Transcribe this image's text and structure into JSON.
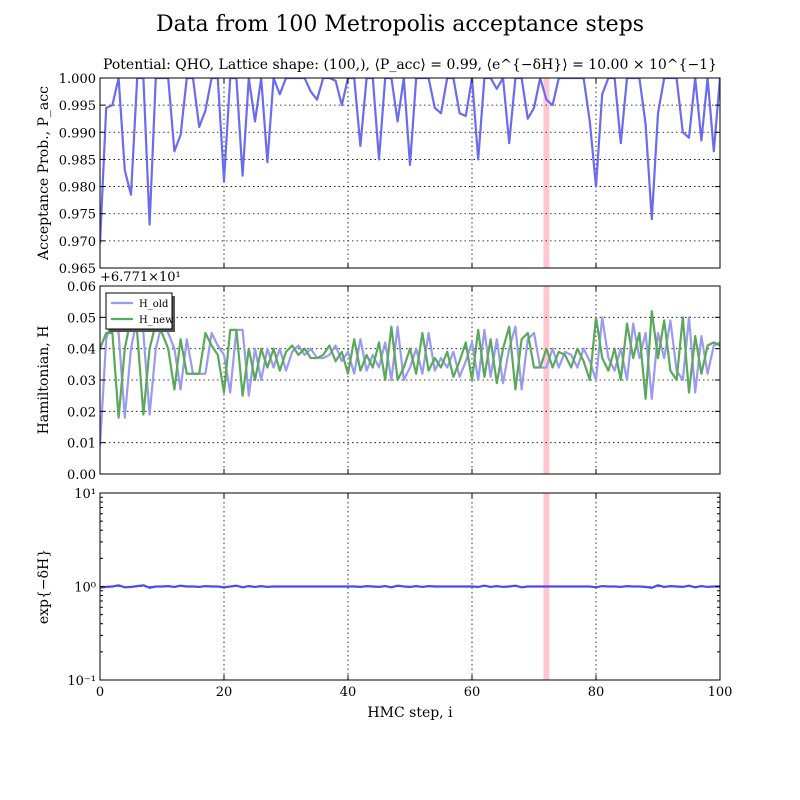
{
  "figure": {
    "title": "Data from 100 Metropolis acceptance steps",
    "subtitle": "Potential: QHO, Lattice shape: (100,), ⟨P_acc⟩ = 0.99, ⟨e^{−δH}⟩ = 10.00 × 10^{−1}",
    "xlabel": "HMC step, i"
  },
  "chart_data": [
    {
      "type": "line",
      "panel": "acceptance",
      "ylabel": "Acceptance Prob., P_acc",
      "xlim": [
        0,
        100
      ],
      "ylim": [
        0.965,
        1.0
      ],
      "xticks": [
        0,
        20,
        40,
        60,
        80,
        100
      ],
      "yticks": [
        "0.965",
        "0.970",
        "0.975",
        "0.980",
        "0.985",
        "0.990",
        "0.995",
        "1.000"
      ],
      "grid": true,
      "highlight_x": 72,
      "highlight_color": "#ffb6c1",
      "series": [
        {
          "color": "#6b6bf0",
          "x": [
            0,
            1,
            2,
            3,
            4,
            5,
            6,
            7,
            8,
            9,
            10,
            11,
            12,
            13,
            14,
            15,
            16,
            17,
            18,
            19,
            20,
            21,
            22,
            23,
            24,
            25,
            26,
            27,
            28,
            29,
            30,
            31,
            32,
            33,
            34,
            35,
            36,
            37,
            38,
            39,
            40,
            41,
            42,
            43,
            44,
            45,
            46,
            47,
            48,
            49,
            50,
            51,
            52,
            53,
            54,
            55,
            56,
            57,
            58,
            59,
            60,
            61,
            62,
            63,
            64,
            65,
            66,
            67,
            68,
            69,
            70,
            71,
            72,
            73,
            74,
            75,
            76,
            77,
            78,
            79,
            80,
            81,
            82,
            83,
            84,
            85,
            86,
            87,
            88,
            89,
            90,
            91,
            92,
            93,
            94,
            95,
            96,
            97,
            98,
            99,
            100
          ],
          "values": [
            0.9695,
            0.9945,
            0.995,
            1.0,
            0.983,
            0.9785,
            1.0,
            1.0,
            0.973,
            1.0,
            1.0,
            1.0,
            0.9865,
            0.9895,
            1.0,
            1.0,
            0.991,
            0.994,
            1.0,
            1.0,
            0.981,
            1.0,
            1.0,
            0.982,
            1.0,
            0.992,
            1.0,
            0.9845,
            1.0,
            0.997,
            1.0,
            1.0,
            1.0,
            1.0,
            0.9975,
            0.996,
            1.0,
            1.0,
            0.9995,
            0.995,
            1.0,
            1.0,
            0.9875,
            1.0,
            1.0,
            0.985,
            1.0,
            1.0,
            0.992,
            1.0,
            0.984,
            1.0,
            1.0,
            1.0,
            0.9945,
            0.9935,
            1.0,
            1.0,
            0.9935,
            0.993,
            1.0,
            0.985,
            1.0,
            1.0,
            0.998,
            1.0,
            0.988,
            1.0,
            1.0,
            0.9925,
            0.9945,
            1.0,
            0.996,
            0.995,
            1.0,
            1.0,
            1.0,
            1.0,
            1.0,
            0.992,
            0.98,
            0.997,
            1.0,
            1.0,
            0.988,
            1.0,
            1.0,
            1.0,
            0.9915,
            0.974,
            0.9935,
            1.0,
            1.0,
            1.0,
            0.99,
            0.989,
            1.0,
            0.9885,
            1.0,
            0.9865,
            1.0
          ]
        }
      ]
    },
    {
      "type": "line",
      "panel": "hamiltonian",
      "ylabel": "Hamiltonian, H",
      "offset_label": "+6.771×10¹",
      "xlim": [
        0,
        100
      ],
      "ylim": [
        0.0,
        0.06
      ],
      "xticks": [
        0,
        20,
        40,
        60,
        80,
        100
      ],
      "yticks": [
        "0.00",
        "0.01",
        "0.02",
        "0.03",
        "0.04",
        "0.05",
        "0.06"
      ],
      "grid": true,
      "legend": "top-left",
      "highlight_x": 72,
      "highlight_color": "#ffb6c1",
      "series": [
        {
          "name": "H_old",
          "color": "#9a9af0",
          "x": [
            0,
            1,
            2,
            3,
            4,
            5,
            6,
            7,
            8,
            9,
            10,
            11,
            12,
            13,
            14,
            15,
            16,
            17,
            18,
            19,
            20,
            21,
            22,
            23,
            24,
            25,
            26,
            27,
            28,
            29,
            30,
            31,
            32,
            33,
            34,
            35,
            36,
            37,
            38,
            39,
            40,
            41,
            42,
            43,
            44,
            45,
            46,
            47,
            48,
            49,
            50,
            51,
            52,
            53,
            54,
            55,
            56,
            57,
            58,
            59,
            60,
            61,
            62,
            63,
            64,
            65,
            66,
            67,
            68,
            69,
            70,
            71,
            72,
            73,
            74,
            75,
            76,
            77,
            78,
            79,
            80,
            81,
            82,
            83,
            84,
            85,
            86,
            87,
            88,
            89,
            90,
            91,
            92,
            93,
            94,
            95,
            96,
            97,
            98,
            99,
            100
          ],
          "values": [
            0.009,
            0.043,
            0.05,
            0.045,
            0.018,
            0.04,
            0.05,
            0.045,
            0.019,
            0.04,
            0.048,
            0.045,
            0.04,
            0.027,
            0.043,
            0.032,
            0.032,
            0.032,
            0.045,
            0.041,
            0.038,
            0.026,
            0.046,
            0.046,
            0.025,
            0.04,
            0.03,
            0.04,
            0.034,
            0.04,
            0.033,
            0.039,
            0.041,
            0.038,
            0.04,
            0.037,
            0.037,
            0.038,
            0.041,
            0.036,
            0.039,
            0.032,
            0.043,
            0.033,
            0.038,
            0.034,
            0.042,
            0.03,
            0.047,
            0.03,
            0.034,
            0.04,
            0.032,
            0.045,
            0.033,
            0.037,
            0.034,
            0.039,
            0.031,
            0.036,
            0.042,
            0.03,
            0.046,
            0.031,
            0.043,
            0.029,
            0.04,
            0.047,
            0.027,
            0.043,
            0.045,
            0.034,
            0.034,
            0.04,
            0.034,
            0.039,
            0.038,
            0.034,
            0.04,
            0.036,
            0.03,
            0.05,
            0.037,
            0.033,
            0.04,
            0.03,
            0.048,
            0.037,
            0.045,
            0.024,
            0.045,
            0.037,
            0.049,
            0.033,
            0.03,
            0.05,
            0.026,
            0.044,
            0.032,
            0.041,
            0.042
          ]
        },
        {
          "name": "H_new",
          "color": "#5aa85a",
          "x": [
            0,
            1,
            2,
            3,
            4,
            5,
            6,
            7,
            8,
            9,
            10,
            11,
            12,
            13,
            14,
            15,
            16,
            17,
            18,
            19,
            20,
            21,
            22,
            23,
            24,
            25,
            26,
            27,
            28,
            29,
            30,
            31,
            32,
            33,
            34,
            35,
            36,
            37,
            38,
            39,
            40,
            41,
            42,
            43,
            44,
            45,
            46,
            47,
            48,
            49,
            50,
            51,
            52,
            53,
            54,
            55,
            56,
            57,
            58,
            59,
            60,
            61,
            62,
            63,
            64,
            65,
            66,
            67,
            68,
            69,
            70,
            71,
            72,
            73,
            74,
            75,
            76,
            77,
            78,
            79,
            80,
            81,
            82,
            83,
            84,
            85,
            86,
            87,
            88,
            89,
            90,
            91,
            92,
            93,
            94,
            95,
            96,
            97,
            98,
            99,
            100
          ],
          "values": [
            0.04,
            0.045,
            0.045,
            0.018,
            0.04,
            0.05,
            0.045,
            0.019,
            0.04,
            0.048,
            0.045,
            0.04,
            0.027,
            0.043,
            0.032,
            0.032,
            0.032,
            0.045,
            0.041,
            0.038,
            0.026,
            0.046,
            0.046,
            0.025,
            0.04,
            0.03,
            0.04,
            0.034,
            0.04,
            0.033,
            0.039,
            0.041,
            0.038,
            0.04,
            0.037,
            0.037,
            0.038,
            0.041,
            0.036,
            0.039,
            0.032,
            0.043,
            0.033,
            0.038,
            0.034,
            0.042,
            0.03,
            0.047,
            0.03,
            0.034,
            0.04,
            0.032,
            0.045,
            0.033,
            0.037,
            0.034,
            0.039,
            0.031,
            0.036,
            0.042,
            0.03,
            0.046,
            0.031,
            0.043,
            0.029,
            0.04,
            0.047,
            0.027,
            0.043,
            0.045,
            0.034,
            0.034,
            0.04,
            0.034,
            0.039,
            0.038,
            0.034,
            0.04,
            0.036,
            0.03,
            0.05,
            0.037,
            0.033,
            0.04,
            0.03,
            0.048,
            0.037,
            0.045,
            0.024,
            0.052,
            0.037,
            0.049,
            0.033,
            0.03,
            0.05,
            0.026,
            0.044,
            0.032,
            0.041,
            0.042,
            0.041
          ]
        }
      ]
    },
    {
      "type": "line",
      "panel": "expdh",
      "ylabel": "exp{−δH}",
      "yscale": "log",
      "xlim": [
        0,
        100
      ],
      "ylim": [
        0.1,
        10
      ],
      "xticks": [
        0,
        20,
        40,
        60,
        80,
        100
      ],
      "yticks": [
        "10⁻¹",
        "10⁰",
        "10¹"
      ],
      "grid": true,
      "highlight_x": 72,
      "highlight_color": "#ffb6c1",
      "series": [
        {
          "color": "#4a4af0",
          "x": [
            0,
            1,
            2,
            3,
            4,
            5,
            6,
            7,
            8,
            9,
            10,
            11,
            12,
            13,
            14,
            15,
            16,
            17,
            18,
            19,
            20,
            21,
            22,
            23,
            24,
            25,
            26,
            27,
            28,
            29,
            30,
            31,
            32,
            33,
            34,
            35,
            36,
            37,
            38,
            39,
            40,
            41,
            42,
            43,
            44,
            45,
            46,
            47,
            48,
            49,
            50,
            51,
            52,
            53,
            54,
            55,
            56,
            57,
            58,
            59,
            60,
            61,
            62,
            63,
            64,
            65,
            66,
            67,
            68,
            69,
            70,
            71,
            72,
            73,
            74,
            75,
            76,
            77,
            78,
            79,
            80,
            81,
            82,
            83,
            84,
            85,
            86,
            87,
            88,
            89,
            90,
            91,
            92,
            93,
            94,
            95,
            96,
            97,
            98,
            99,
            100
          ],
          "values": [
            0.97,
            0.99,
            1.0,
            1.03,
            0.98,
            0.99,
            1.01,
            1.03,
            0.97,
            1.0,
            1.0,
            1.01,
            0.99,
            1.02,
            1.0,
            1.0,
            0.99,
            1.01,
            1.0,
            1.0,
            0.98,
            1.0,
            1.02,
            0.98,
            1.01,
            0.99,
            1.01,
            0.99,
            1.0,
            1.0,
            1.0,
            1.0,
            1.0,
            1.0,
            1.0,
            1.0,
            1.0,
            1.0,
            1.0,
            1.0,
            1.0,
            1.0,
            0.99,
            1.01,
            1.0,
            0.99,
            1.01,
            0.98,
            1.02,
            1.0,
            0.99,
            1.01,
            0.99,
            1.01,
            1.0,
            1.0,
            1.0,
            1.0,
            1.0,
            1.0,
            1.0,
            0.99,
            1.02,
            0.99,
            1.01,
            0.99,
            1.0,
            1.02,
            0.98,
            1.0,
            1.0,
            1.0,
            1.0,
            1.0,
            1.0,
            1.0,
            1.0,
            1.0,
            1.0,
            1.0,
            0.98,
            1.01,
            1.0,
            1.0,
            0.99,
            1.01,
            1.0,
            1.0,
            0.99,
            0.97,
            1.03,
            0.99,
            1.01,
            1.0,
            0.99,
            1.02,
            0.98,
            1.01,
            0.99,
            1.0,
            1.0
          ]
        }
      ]
    }
  ]
}
